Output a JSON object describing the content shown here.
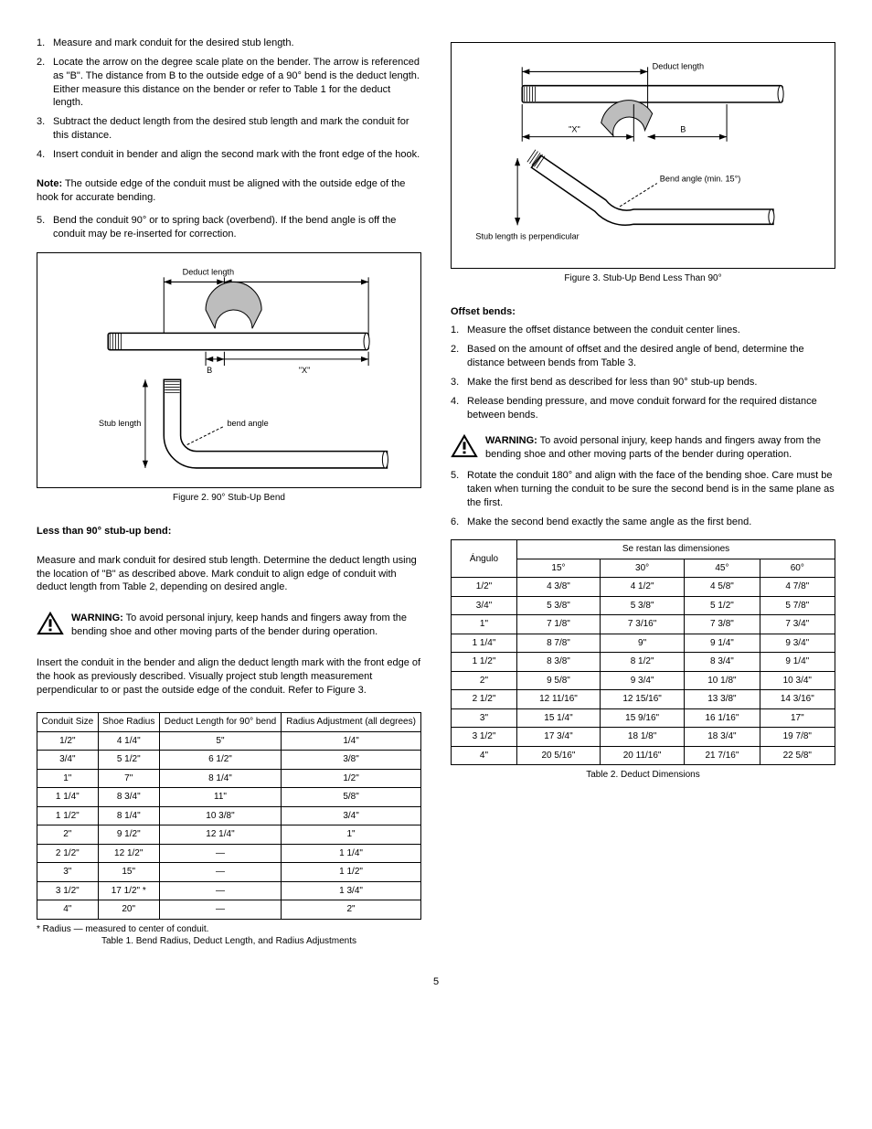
{
  "left": {
    "steps_top": [
      {
        "n": "1.",
        "t": "Measure and mark conduit for the desired stub length."
      },
      {
        "n": "2.",
        "t": "Locate the arrow on the degree scale plate on the bender. The arrow is referenced as \"B\". The distance from B to the outside edge of a 90° bend is the deduct length. Either measure this distance on the bender or refer to Table 1 for the deduct length."
      },
      {
        "n": "3.",
        "t": "Subtract the deduct length from the desired stub length and mark the conduit for this distance."
      },
      {
        "n": "4.",
        "t": "Insert conduit in bender and align the second mark with the front edge of the hook."
      }
    ],
    "note_label": "Note:",
    "note_text": " The outside edge of the conduit must be aligned with the outside edge of the hook for accurate bending.",
    "steps_bottom": [
      {
        "n": "5.",
        "t": "Bend the conduit 90° or to spring back (overbend). If the bend angle is off the conduit may be re-inserted for correction."
      }
    ],
    "fig2": {
      "title": "Figure 2. 90° Stub-Up Bend",
      "label_deduct": "Deduct length",
      "label_stub": "Stub length",
      "label_X": "\"X\"",
      "label_B": "B",
      "label_bend_angle": "bend angle"
    },
    "h_less90": "Less than 90° stub-up bend:",
    "less90_p1": "Measure and mark conduit for desired stub length. Determine the deduct length using the location of \"B\" as described above. Mark conduit to align edge of conduit with deduct length from Table 2, depending on desired angle.",
    "warn_label": "WARNING:",
    "warn_text": " To avoid personal injury, keep hands and fingers away from the bending shoe and other moving parts of the bender during operation.",
    "less90_p2": "Insert the conduit in the bender and align the deduct length mark with the front edge of the hook as previously described. Visually project stub length measurement perpendicular to or past the outside edge of the conduit. Refer to Figure 3.",
    "table1": {
      "caption": "Table 1. Bend Radius, Deduct Length, and Radius Adjustments",
      "headers": [
        "Conduit Size",
        "Shoe Radius",
        "Deduct Length for 90° bend",
        "Radius Adjustment (all degrees)"
      ],
      "rows": [
        [
          "1/2\"",
          "4 1/4\"",
          "5\"",
          "1/4\""
        ],
        [
          "3/4\"",
          "5 1/2\"",
          "6 1/2\"",
          "3/8\""
        ],
        [
          "1\"",
          "7\"",
          "8 1/4\"",
          "1/2\""
        ],
        [
          "1 1/4\"",
          "8 3/4\"",
          "11\"",
          "5/8\""
        ],
        [
          "1 1/2\"",
          "8 1/4\"",
          "10 3/8\"",
          "3/4\""
        ],
        [
          "2\"",
          "9 1/2\"",
          "12 1/4\"",
          "1\""
        ],
        [
          "2 1/2\"",
          "12 1/2\"",
          "—",
          "1 1/4\""
        ],
        [
          "3\"",
          "15\"",
          "—",
          "1 1/2\""
        ],
        [
          "3 1/2\"",
          "17 1/2\" *",
          "—",
          "1 3/4\""
        ],
        [
          "4\"",
          "20\"",
          "—",
          "2\""
        ]
      ],
      "footnote": "* Radius — measured to center of conduit."
    }
  },
  "right": {
    "fig3": {
      "title": "Figure 3. Stub-Up Bend Less Than 90°",
      "label_deduct": "Deduct length",
      "label_X": "\"X\"",
      "label_B": "B",
      "label_bend_angle": "Bend angle (min. 15°)",
      "label_stub_perp": "Stub length is perpendicular"
    },
    "h_offset": "Offset bends:",
    "offset_steps": [
      {
        "n": "1.",
        "t": "Measure the offset distance between the conduit center lines."
      },
      {
        "n": "2.",
        "t": "Based on the amount of offset and the desired angle of bend, determine the distance between bends from Table 3."
      },
      {
        "n": "3.",
        "t": "Make the first bend as described for less than 90° stub-up bends."
      },
      {
        "n": "4.",
        "t": "Release bending pressure, and move conduit forward for the required distance between bends."
      }
    ],
    "warn_label": "WARNING:",
    "warn_text": " To avoid personal injury, keep hands and fingers away from the bending shoe and other moving parts of the bender during operation.",
    "offset_steps2": [
      {
        "n": "5.",
        "t": "Rotate the conduit 180° and align with the face of the bending shoe. Care must be taken when turning the conduit to be sure the second bend is in the same plane as the first."
      },
      {
        "n": "6.",
        "t": "Make the second bend exactly the same angle as the first bend."
      }
    ],
    "table2": {
      "caption": "Table 2. Deduct Dimensions",
      "header_top": "Se restan las dimensiones",
      "header_angle": "Ángulo",
      "angle_headers": [
        "15°",
        "30°",
        "45°",
        "60°"
      ],
      "rows": [
        [
          "1/2\"",
          "4 3/8\"",
          "4 1/2\"",
          "4 5/8\"",
          "4 7/8\""
        ],
        [
          "3/4\"",
          "5 3/8\"",
          "5 3/8\"",
          "5 1/2\"",
          "5 7/8\""
        ],
        [
          "1\"",
          "7 1/8\"",
          "7 3/16\"",
          "7 3/8\"",
          "7 3/4\""
        ],
        [
          "1 1/4\"",
          "8 7/8\"",
          "9\"",
          "9 1/4\"",
          "9 3/4\""
        ],
        [
          "1 1/2\"",
          "8 3/8\"",
          "8 1/2\"",
          "8 3/4\"",
          "9 1/4\""
        ],
        [
          "2\"",
          "9 5/8\"",
          "9 3/4\"",
          "10 1/8\"",
          "10 3/4\""
        ],
        [
          "2 1/2\"",
          "12 11/16\"",
          "12 15/16\"",
          "13 3/8\"",
          "14 3/16\""
        ],
        [
          "3\"",
          "15 1/4\"",
          "15 9/16\"",
          "16 1/16\"",
          "17\""
        ],
        [
          "3 1/2\"",
          "17 3/4\"",
          "18 1/8\"",
          "18 3/4\"",
          "19 7/8\""
        ],
        [
          "4\"",
          "20 5/16\"",
          "20 11/16\"",
          "21 7/16\"",
          "22 5/8\""
        ]
      ]
    }
  },
  "page_num": "5"
}
